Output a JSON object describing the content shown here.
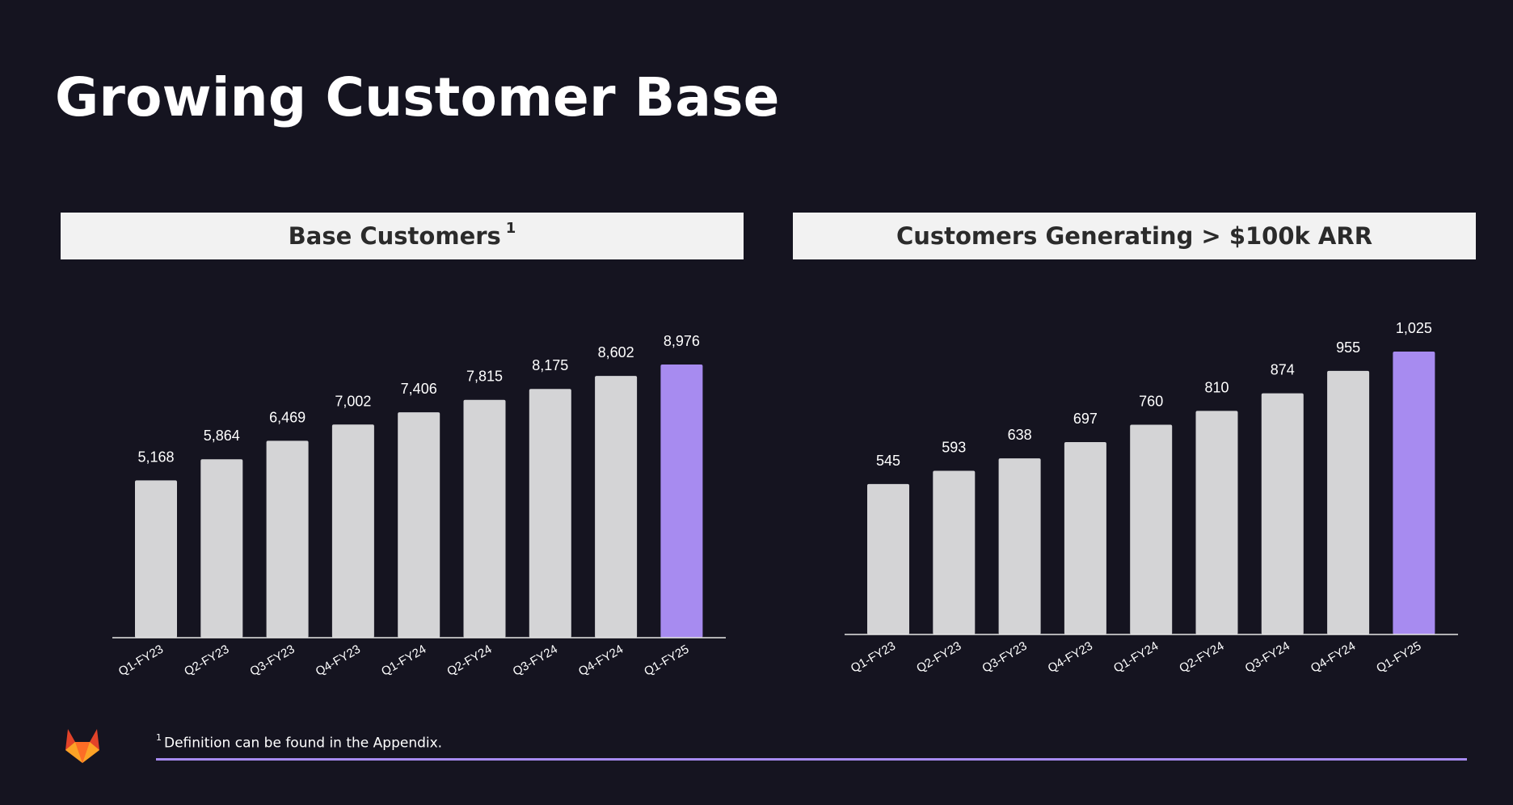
{
  "page": {
    "title": "Growing Customer Base",
    "footnote_marker": "1",
    "footnote_text": "Definition can be found in the Appendix.",
    "logo_icon": "gitlab-fox-icon"
  },
  "colors": {
    "background": "#151420",
    "bar_default": "#d4d4d6",
    "bar_highlight": "#a78bf0",
    "accent_rule": "#a78bf0"
  },
  "chart_data": [
    {
      "type": "bar",
      "title": "Base Customers",
      "title_footnote": "1",
      "categories": [
        "Q1-FY23",
        "Q2-FY23",
        "Q3-FY23",
        "Q4-FY23",
        "Q1-FY24",
        "Q2-FY24",
        "Q3-FY24",
        "Q4-FY24",
        "Q1-FY25"
      ],
      "values": [
        5168,
        5864,
        6469,
        7002,
        7406,
        7815,
        8175,
        8602,
        8976
      ],
      "value_labels": [
        "5,168",
        "5,864",
        "6,469",
        "7,002",
        "7,406",
        "7,815",
        "8,175",
        "8,602",
        "8,976"
      ],
      "highlight_index": 8,
      "xlabel": "",
      "ylabel": "",
      "grid": false
    },
    {
      "type": "bar",
      "title": "Customers Generating > $100k ARR",
      "categories": [
        "Q1-FY23",
        "Q2-FY23",
        "Q3-FY23",
        "Q4-FY23",
        "Q1-FY24",
        "Q2-FY24",
        "Q3-FY24",
        "Q4-FY24",
        "Q1-FY25"
      ],
      "values": [
        545,
        593,
        638,
        697,
        760,
        810,
        874,
        955,
        1025
      ],
      "value_labels": [
        "545",
        "593",
        "638",
        "697",
        "760",
        "810",
        "874",
        "955",
        "1,025"
      ],
      "highlight_index": 8,
      "xlabel": "",
      "ylabel": "",
      "grid": false
    }
  ]
}
